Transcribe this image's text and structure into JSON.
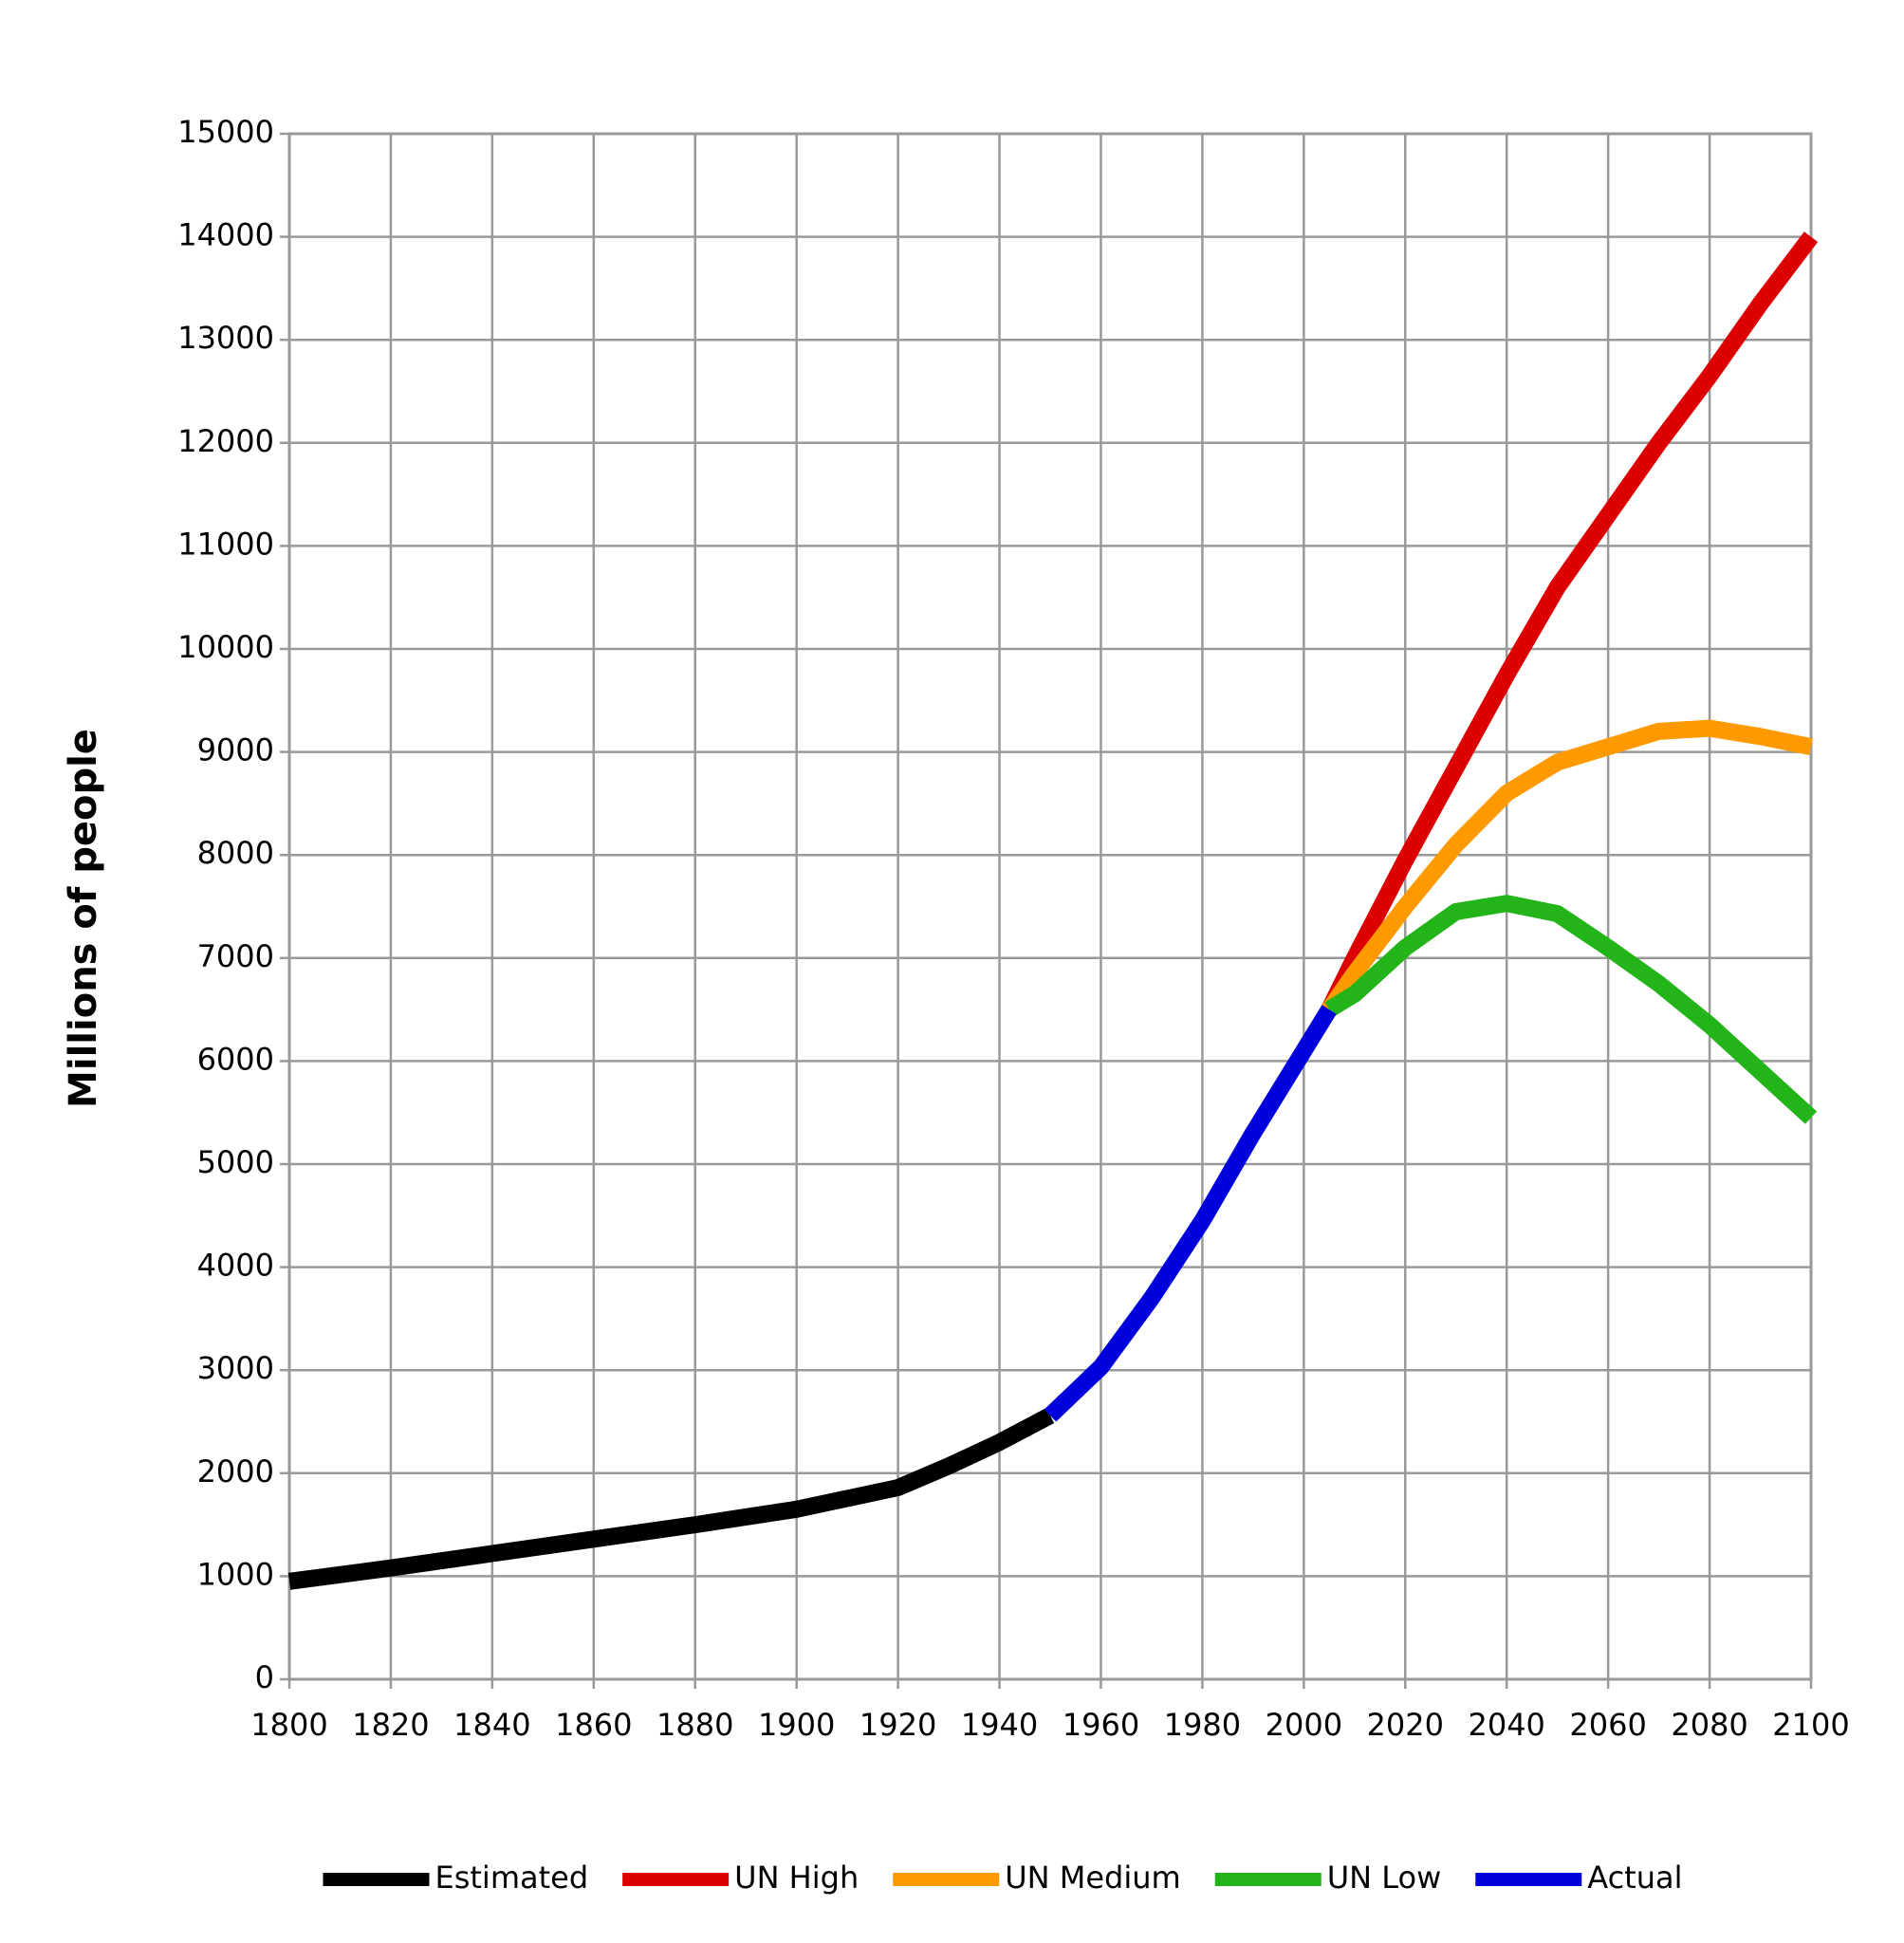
{
  "chart_data": {
    "type": "line",
    "y_label": "Millions of people",
    "xlim": [
      1800,
      2100
    ],
    "xticks": [
      1800,
      1820,
      1840,
      1860,
      1880,
      1900,
      1920,
      1940,
      1960,
      1980,
      2000,
      2020,
      2040,
      2060,
      2080,
      2100
    ],
    "ylim": [
      0,
      15000
    ],
    "yticks": [
      0,
      1000,
      2000,
      3000,
      4000,
      5000,
      6000,
      7000,
      8000,
      9000,
      10000,
      11000,
      12000,
      13000,
      14000,
      15000
    ],
    "grid": true,
    "legend": "bottom",
    "series": [
      {
        "name": "Estimated",
        "color": "#000000",
        "x": [
          1800,
          1820,
          1840,
          1860,
          1880,
          1900,
          1920,
          1930,
          1940,
          1950
        ],
        "values": [
          950,
          1080,
          1220,
          1360,
          1500,
          1650,
          1860,
          2070,
          2300,
          2560
        ]
      },
      {
        "name": "UN High",
        "color": "#dd0000",
        "x": [
          2005,
          2010,
          2020,
          2030,
          2040,
          2050,
          2060,
          2070,
          2080,
          2090,
          2100
        ],
        "values": [
          6500,
          7000,
          7950,
          8850,
          9750,
          10600,
          11300,
          12000,
          12650,
          13350,
          14000
        ]
      },
      {
        "name": "UN Medium",
        "color": "#ff9900",
        "x": [
          2005,
          2010,
          2020,
          2030,
          2040,
          2050,
          2060,
          2070,
          2080,
          2090,
          2100
        ],
        "values": [
          6500,
          6850,
          7500,
          8100,
          8600,
          8900,
          9050,
          9200,
          9230,
          9150,
          9050
        ]
      },
      {
        "name": "UN Low",
        "color": "#22b418",
        "x": [
          2005,
          2010,
          2020,
          2030,
          2040,
          2050,
          2060,
          2070,
          2080,
          2090,
          2100
        ],
        "values": [
          6500,
          6650,
          7100,
          7450,
          7530,
          7430,
          7100,
          6750,
          6350,
          5900,
          5450
        ]
      },
      {
        "name": "Actual",
        "color": "#0000dd",
        "x": [
          1950,
          1960,
          1970,
          1980,
          1990,
          2000,
          2005
        ],
        "values": [
          2560,
          3030,
          3700,
          4450,
          5300,
          6100,
          6500
        ]
      }
    ]
  }
}
